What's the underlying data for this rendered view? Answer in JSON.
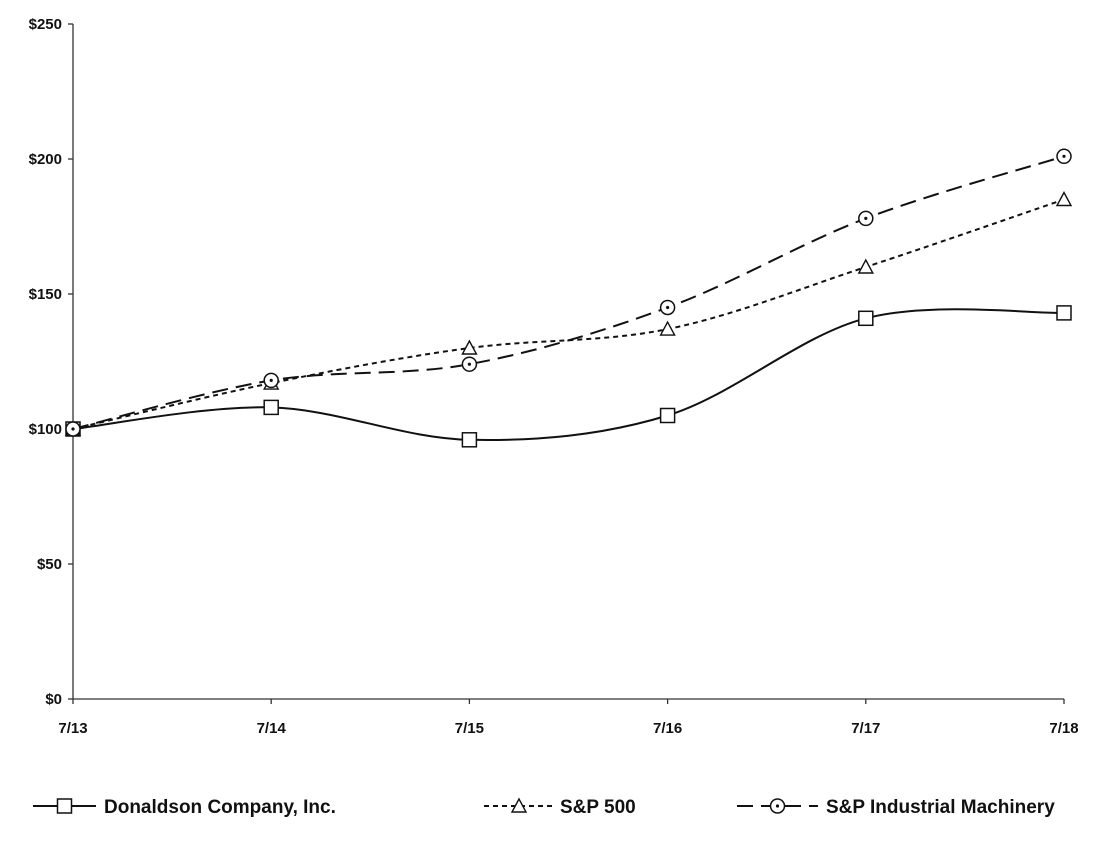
{
  "chart_data": {
    "type": "line",
    "title": "",
    "xlabel": "",
    "ylabel": "",
    "categories": [
      "7/13",
      "7/14",
      "7/15",
      "7/16",
      "7/17",
      "7/18"
    ],
    "ylim": [
      0,
      250
    ],
    "yticks": [
      0,
      50,
      100,
      150,
      200,
      250
    ],
    "ytick_labels": [
      "$0",
      "$50",
      "$100",
      "$150",
      "$200",
      "$250"
    ],
    "grid": false,
    "legend_position": "bottom",
    "series": [
      {
        "name": "Donaldson Company, Inc.",
        "values": [
          100,
          108,
          96,
          105,
          141,
          143
        ],
        "marker": "square",
        "line_style": "solid",
        "color": "#111111"
      },
      {
        "name": "S&P 500",
        "values": [
          100,
          117,
          130,
          137,
          160,
          185
        ],
        "marker": "triangle",
        "line_style": "short-dash",
        "color": "#111111"
      },
      {
        "name": "S&P Industrial Machinery",
        "values": [
          100,
          118,
          124,
          145,
          178,
          201
        ],
        "marker": "circle-dot",
        "line_style": "long-dash",
        "color": "#111111"
      }
    ]
  }
}
